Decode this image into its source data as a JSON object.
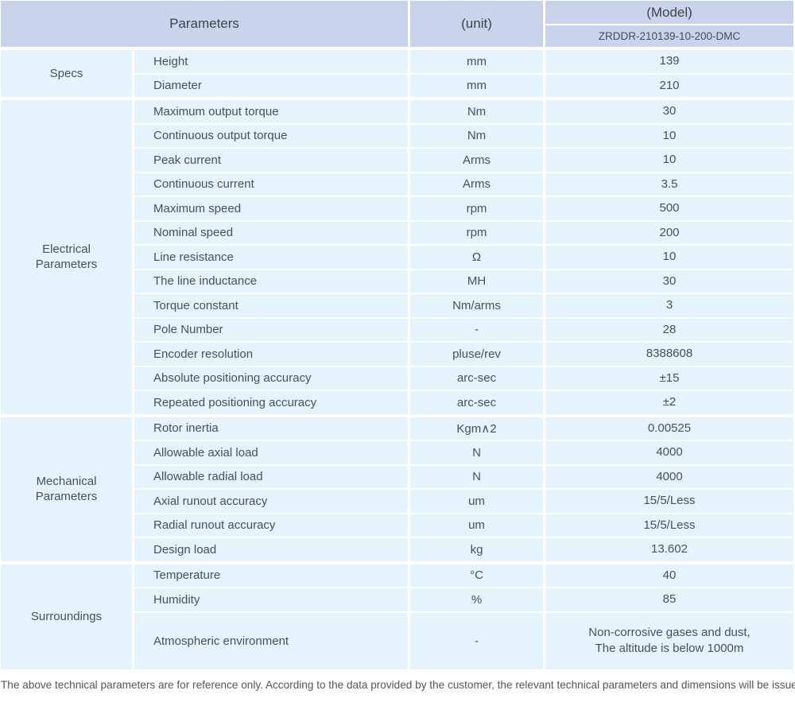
{
  "colors": {
    "header_bg": "#c9d3ec",
    "row_bg": "#e4f3fc",
    "body_text": "#4a5059"
  },
  "table": {
    "header": {
      "parameters_label": "Parameters",
      "unit_label": "(unit)",
      "model_label": "(Model)",
      "model_value": "ZRDDR-210139-10-200-DMC"
    },
    "groups": [
      {
        "name": "Specs",
        "rows": [
          {
            "param": "Height",
            "unit": "mm",
            "value": "139"
          },
          {
            "param": "Diameter",
            "unit": "mm",
            "value": "210"
          }
        ]
      },
      {
        "name": "Electrical Parameters",
        "rows": [
          {
            "param": "Maximum output torque",
            "unit": "Nm",
            "value": "30"
          },
          {
            "param": "Continuous output torque",
            "unit": "Nm",
            "value": "10"
          },
          {
            "param": "Peak current",
            "unit": "Arms",
            "value": "10"
          },
          {
            "param": "Continuous current",
            "unit": "Arms",
            "value": "3.5"
          },
          {
            "param": "Maximum speed",
            "unit": "rpm",
            "value": "500"
          },
          {
            "param": "Nominal speed",
            "unit": "rpm",
            "value": "200"
          },
          {
            "param": "Line resistance",
            "unit": "Ω",
            "value": "10"
          },
          {
            "param": "The line inductance",
            "unit": "MH",
            "value": "30"
          },
          {
            "param": "Torque constant",
            "unit": "Nm/arms",
            "value": "3"
          },
          {
            "param": "Pole Number",
            "unit": "-",
            "value": "28"
          },
          {
            "param": "Encoder resolution",
            "unit": "pluse/rev",
            "value": "8388608"
          },
          {
            "param": "Absolute positioning accuracy",
            "unit": "arc-sec",
            "value": "±15"
          },
          {
            "param": "Repeated positioning accuracy",
            "unit": "arc-sec",
            "value": "±2"
          }
        ]
      },
      {
        "name": "Mechanical Parameters",
        "rows": [
          {
            "param": "Rotor inertia",
            "unit": "Kgm∧2",
            "value": "0.00525"
          },
          {
            "param": "Allowable axial load",
            "unit": "N",
            "value": "4000"
          },
          {
            "param": "Allowable radial load",
            "unit": "N",
            "value": "4000"
          },
          {
            "param": "Axial runout accuracy",
            "unit": "um",
            "value": "15/5/Less"
          },
          {
            "param": "Radial runout accuracy",
            "unit": "um",
            "value": "15/5/Less"
          },
          {
            "param": "Design load",
            "unit": "kg",
            "value": "13.602"
          }
        ]
      },
      {
        "name": "Surroundings",
        "rows": [
          {
            "param": "Temperature",
            "unit": "°C",
            "value": "40"
          },
          {
            "param": "Humidity",
            "unit": "%",
            "value": "85"
          },
          {
            "param": "Atmospheric environment",
            "unit": "-",
            "tall": true,
            "value_lines": [
              "Non-corrosive gases and dust,",
              "The altitude is below 1000m"
            ]
          }
        ]
      }
    ],
    "footer_note": "The above technical parameters are for reference only. According to the data provided by the customer, the relevant technical parameters and dimensions will be issued."
  }
}
